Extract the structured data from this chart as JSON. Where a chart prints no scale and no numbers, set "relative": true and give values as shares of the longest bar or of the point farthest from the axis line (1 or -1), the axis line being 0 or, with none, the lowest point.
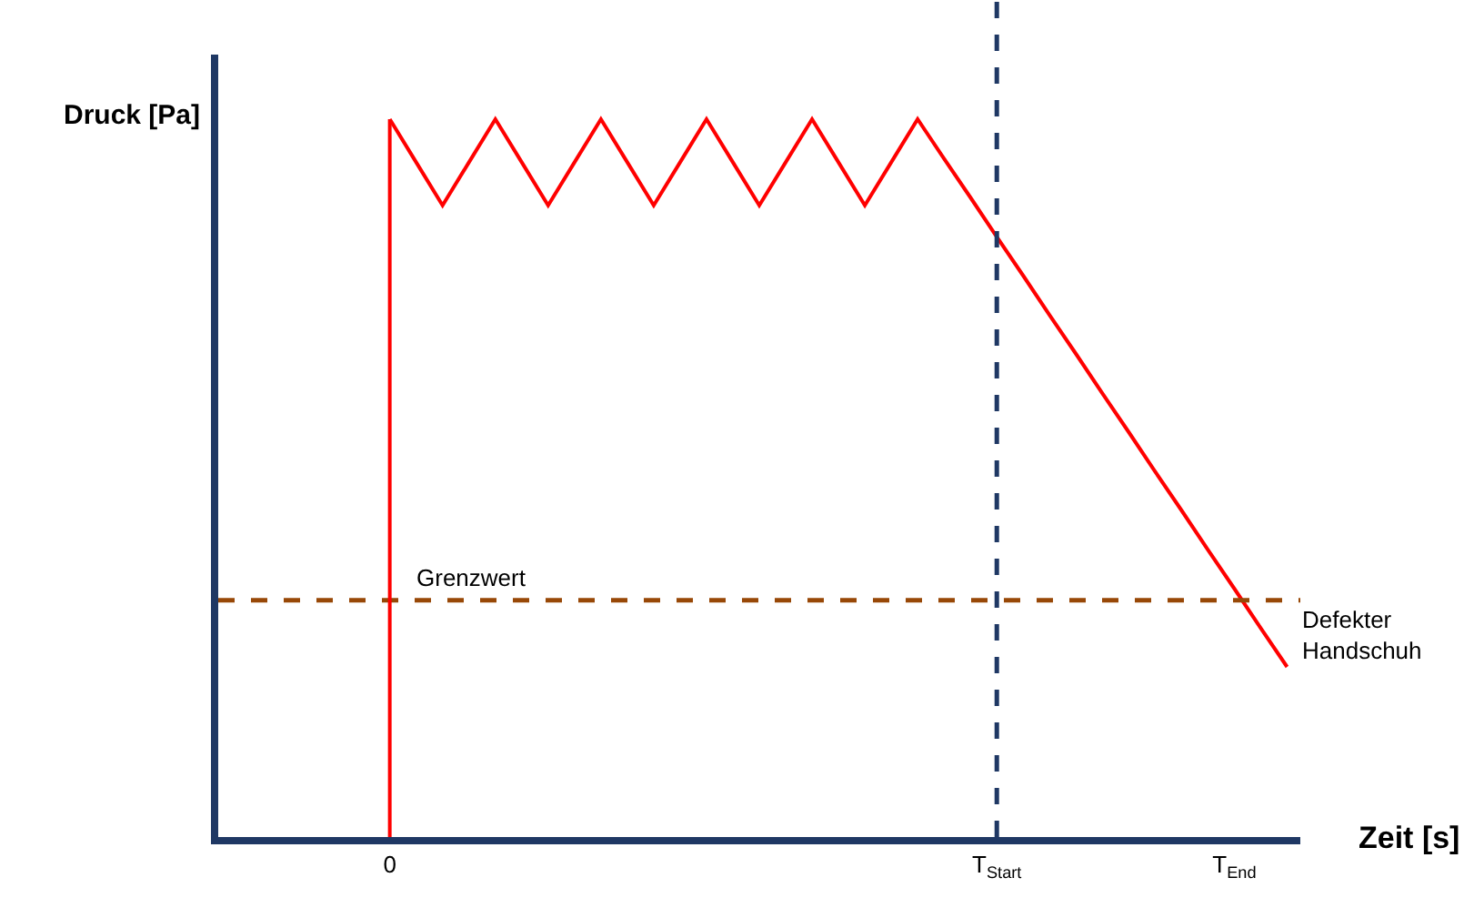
{
  "chart_data": {
    "type": "line",
    "relative": true,
    "xlabel": "Zeit [s]",
    "ylabel": "Druck [Pa]",
    "categories": [
      null,
      null,
      null,
      null,
      null,
      null,
      "0",
      null,
      null,
      null,
      null,
      null,
      null,
      null,
      null,
      null,
      null,
      null,
      null,
      null,
      null,
      null,
      null,
      null,
      null,
      null,
      null,
      null,
      null,
      "T$_{Start}$",
      null,
      null,
      null,
      null,
      null,
      null,
      null,
      null,
      "T$_{End}$",
      null,
      null
    ],
    "series": [
      {
        "color": "#ff0000",
        "values": [
          null,
          null,
          null,
          null,
          null,
          null,
          1,
          0.94,
          0.88,
          0.94,
          1,
          0.94,
          0.88,
          0.94,
          1,
          0.94,
          0.88,
          0.94,
          1,
          0.94,
          0.88,
          0.94,
          1,
          0.94,
          0.88,
          0.94,
          1,
          0.945,
          0.891,
          0.836,
          0.782,
          0.727,
          0.673,
          0.618,
          0.564,
          0.509,
          0.455,
          0.4,
          0.346,
          0.291,
          0.237
        ]
      }
    ],
    "ref_lines": [
      {
        "axis": "y",
        "value": 0.33,
        "label": "Grenzwert",
        "color": "#984807",
        "line_style": "dashed"
      },
      {
        "axis": "x",
        "value": "0",
        "label": null,
        "color": "#ff0000",
        "line_style": "solid"
      },
      {
        "axis": "x",
        "value": "T$_{Start}$",
        "label": null,
        "color": "#1f3864",
        "line_style": "dashed"
      }
    ],
    "annotations": [
      "Defekter Handschuh"
    ],
    "marker": "none",
    "line_style": "solid"
  }
}
